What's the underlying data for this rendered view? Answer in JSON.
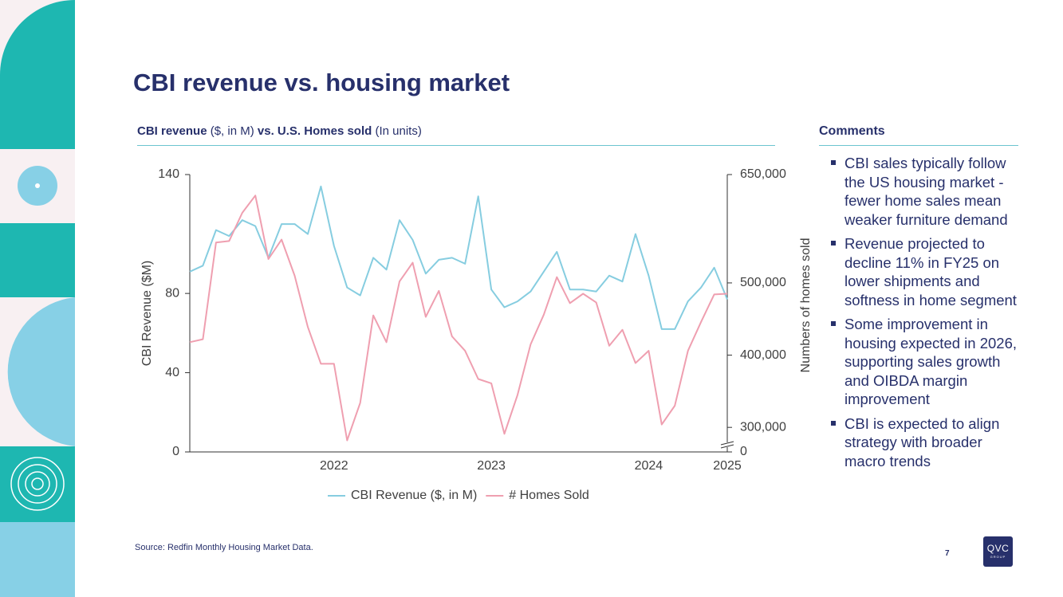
{
  "slide": {
    "title": "CBI revenue vs. housing market",
    "chart_heading": [
      {
        "text": "CBI revenue",
        "bold": true
      },
      {
        "text": "($, in M)",
        "bold": false
      },
      {
        "text": "vs. U.S. Homes sold",
        "bold": true
      },
      {
        "text": "(In units)",
        "bold": false
      }
    ],
    "comments_heading": "Comments",
    "comments": [
      "CBI sales typically follow the US housing market - fewer home sales mean weaker furniture demand",
      "Revenue projected to decline 11% in FY25 on lower shipments and softness in home segment",
      "Some improvement in housing expected in 2026, supporting sales growth and OIBDA margin improvement",
      "CBI is expected to align strategy with broader macro trends"
    ],
    "source": "Source: Redfin Monthly Housing Market Data.",
    "page_number": "7",
    "logo": [
      "QVC",
      "GROUP"
    ]
  },
  "chart_data": {
    "type": "line",
    "y_label": "CBI Revenue ($M)",
    "y2_label": "Numbers of homes sold",
    "categories": [
      null,
      null,
      null,
      null,
      null,
      null,
      null,
      null,
      null,
      null,
      null,
      "2022",
      null,
      null,
      null,
      null,
      null,
      null,
      null,
      null,
      null,
      null,
      null,
      "2023",
      null,
      null,
      null,
      null,
      null,
      null,
      null,
      null,
      null,
      null,
      null,
      "2024",
      null,
      null,
      null,
      null,
      null,
      "2025"
    ],
    "series": [
      {
        "name": "CBI Revenue ($, in M)",
        "color": "#86cde0",
        "axis": "y",
        "values": [
          91,
          94,
          112,
          109,
          117,
          114,
          98,
          115,
          115,
          110,
          134,
          104,
          83,
          79,
          98,
          92,
          117,
          107,
          90,
          97,
          98,
          95,
          129,
          82,
          73,
          76,
          81,
          91,
          101,
          82,
          82,
          81,
          89,
          86,
          110,
          89,
          62,
          62,
          76,
          83,
          93,
          77
        ]
      },
      {
        "name": "# Homes Sold",
        "color": "#ef9fb0",
        "axis": "y2",
        "values": [
          418000,
          422000,
          556000,
          558000,
          597000,
          621000,
          533000,
          560000,
          510000,
          439000,
          388000,
          388000,
          282000,
          334000,
          455000,
          418000,
          502000,
          528000,
          453000,
          489000,
          426000,
          406000,
          367000,
          361000,
          291000,
          345000,
          415000,
          456000,
          508000,
          472000,
          485000,
          473000,
          413000,
          435000,
          389000,
          406000,
          304000,
          330000,
          406000,
          446000,
          484000,
          485000
        ]
      }
    ],
    "ylim": [
      0,
      140
    ],
    "yticks": [
      0,
      40,
      80,
      140
    ],
    "y2lim": [
      0,
      650000
    ],
    "y2_break": [
      0,
      266000
    ],
    "y2ticks": [
      0,
      {
        "value": 300000,
        "label": "300,000"
      },
      {
        "value": 400000,
        "label": "400,000"
      },
      {
        "value": 500000,
        "label": "500,000"
      },
      {
        "value": 650000,
        "label": "650,000"
      }
    ],
    "grid": false,
    "legend": "bottom"
  }
}
